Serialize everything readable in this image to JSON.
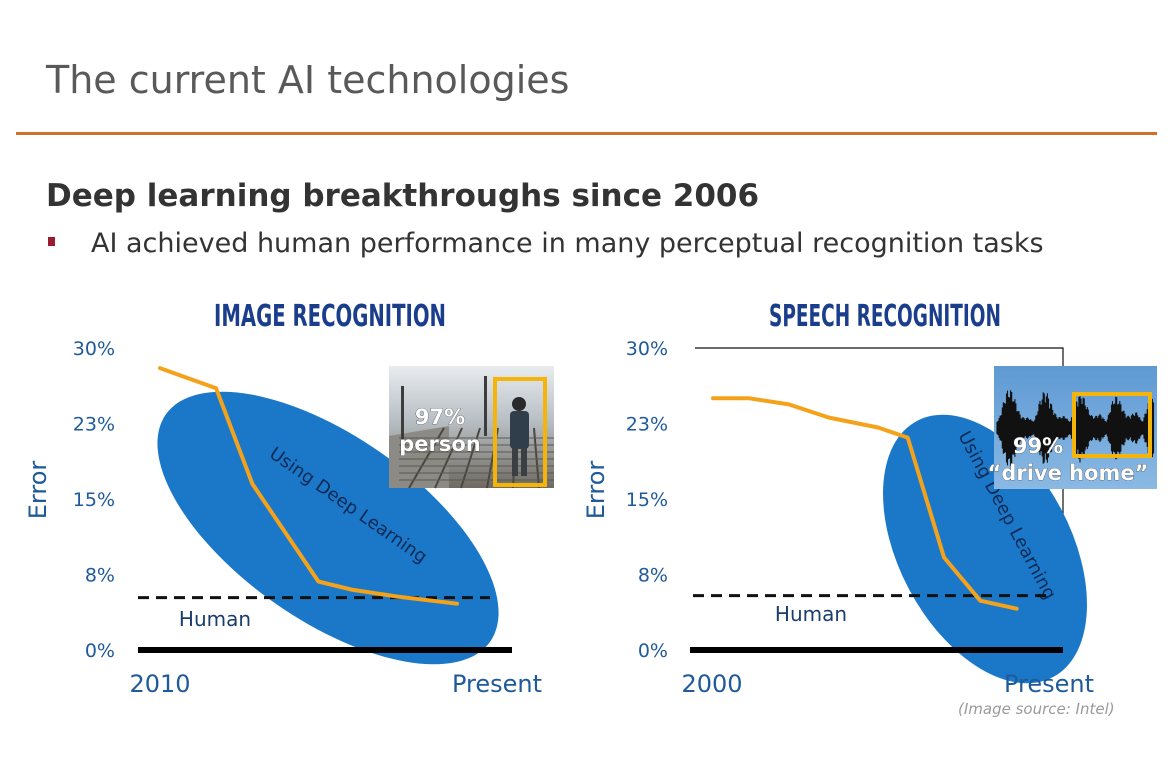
{
  "slide": {
    "title": "The current AI technologies",
    "subtitle": "Deep learning breakthroughs since 2006",
    "bullet": "AI achieved human performance in many perceptual recognition tasks",
    "source": "(Image source: Intel)"
  },
  "colors": {
    "accent_rule": "#d0702a",
    "bullet": "#9b1b30",
    "heading": "#1a3e8c",
    "axis_text": "#1f5a9a",
    "ellipse": "#1b78c8",
    "line": "#f5a21b",
    "human": "#111111",
    "bbox": "#f5b40a"
  },
  "chart_data": [
    {
      "type": "line",
      "title": "IMAGE RECOGNITION",
      "ylabel": "Error",
      "yticks": [
        "30%",
        "23%",
        "15%",
        "8%",
        "0%"
      ],
      "ylim": [
        0,
        30
      ],
      "xticks": [
        "2010",
        "Present"
      ],
      "series": [
        {
          "values": [
            [
              0,
              28
            ],
            [
              0.17,
              26
            ],
            [
              0.28,
              16.5
            ],
            [
              0.48,
              6.8
            ],
            [
              0.58,
              6.0
            ],
            [
              0.72,
              5.3
            ],
            [
              0.9,
              4.6
            ]
          ]
        }
      ],
      "human_level": 5.2,
      "human_label": "Human",
      "annotation": "Using Deep Learning",
      "image_caption": [
        "97%",
        "person"
      ]
    },
    {
      "type": "line",
      "title": "SPEECH RECOGNITION",
      "ylabel": "Error",
      "yticks": [
        "30%",
        "23%",
        "15%",
        "8%",
        "0%"
      ],
      "ylim": [
        0,
        30
      ],
      "xticks": [
        "2000",
        "Present"
      ],
      "series": [
        {
          "values": [
            [
              0,
              25
            ],
            [
              0.11,
              25
            ],
            [
              0.23,
              24.4
            ],
            [
              0.35,
              23.1
            ],
            [
              0.5,
              22.1
            ],
            [
              0.59,
              21.1
            ],
            [
              0.7,
              9.2
            ],
            [
              0.81,
              4.9
            ],
            [
              0.92,
              4.1
            ]
          ]
        }
      ],
      "human_level": 5.4,
      "human_label": "Human",
      "annotation": "Using Deep Learning",
      "image_caption": [
        "99%",
        "“drive home”"
      ]
    }
  ]
}
